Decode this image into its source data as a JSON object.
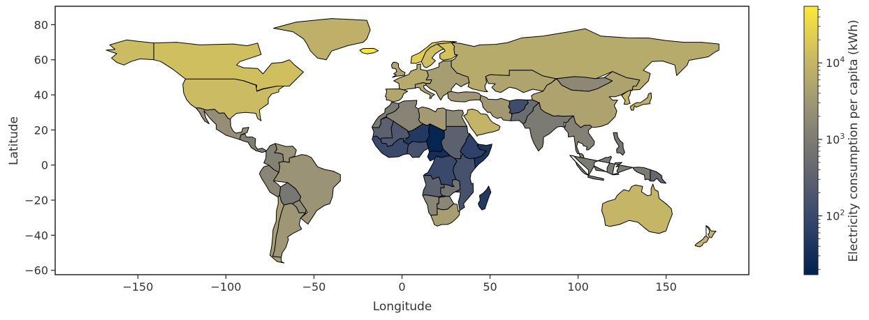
{
  "chart_data": {
    "type": "choropleth",
    "xlabel": "Longitude",
    "ylabel": "Latitude",
    "xlim": [
      -197,
      197
    ],
    "ylim": [
      -62.5,
      90.5
    ],
    "x_ticks": [
      -150,
      -100,
      -50,
      0,
      50,
      100,
      150
    ],
    "x_tick_labels": [
      "−150",
      "−100",
      "−50",
      "0",
      "50",
      "100",
      "150"
    ],
    "y_ticks": [
      80,
      60,
      40,
      20,
      0,
      -20,
      -40,
      -60
    ],
    "y_tick_labels": [
      "80",
      "60",
      "40",
      "20",
      "0",
      "−20",
      "−40",
      "−60"
    ],
    "colorbar": {
      "label": "Electricity consumption per capita (kWh)",
      "scale": "log",
      "range": [
        17,
        55000
      ],
      "major_ticks": [
        100,
        1000,
        10000
      ],
      "tick_labels": [
        {
          "base": "10",
          "exp": "2"
        },
        {
          "base": "10",
          "exp": "3"
        },
        {
          "base": "10",
          "exp": "4"
        }
      ],
      "colormap": [
        "#00224e",
        "#35456c",
        "#666970",
        "#948e77",
        "#c8b866",
        "#fee838"
      ]
    },
    "regions": [
      {
        "name": "Canada",
        "value": 14000
      },
      {
        "name": "United States",
        "value": 12000
      },
      {
        "name": "Alaska",
        "value": 12000
      },
      {
        "name": "Greenland",
        "value": 8000
      },
      {
        "name": "Iceland",
        "value": 50000
      },
      {
        "name": "Mexico",
        "value": 2200
      },
      {
        "name": "Central America",
        "value": 1100
      },
      {
        "name": "Colombia",
        "value": 1200
      },
      {
        "name": "Venezuela",
        "value": 2500
      },
      {
        "name": "Peru",
        "value": 1500
      },
      {
        "name": "Brazil",
        "value": 2600
      },
      {
        "name": "Bolivia",
        "value": 800
      },
      {
        "name": "Paraguay",
        "value": 1800
      },
      {
        "name": "Chile",
        "value": 4000
      },
      {
        "name": "Argentina",
        "value": 3000
      },
      {
        "name": "Norway",
        "value": 23000
      },
      {
        "name": "Sweden",
        "value": 13000
      },
      {
        "name": "Finland",
        "value": 15000
      },
      {
        "name": "United Kingdom",
        "value": 5000
      },
      {
        "name": "Western Europe",
        "value": 6500
      },
      {
        "name": "Spain",
        "value": 5500
      },
      {
        "name": "Italy",
        "value": 5000
      },
      {
        "name": "Eastern Europe",
        "value": 3800
      },
      {
        "name": "Turkey",
        "value": 3000
      },
      {
        "name": "Russia",
        "value": 6500
      },
      {
        "name": "Kazakhstan",
        "value": 5000
      },
      {
        "name": "Mongolia",
        "value": 1700
      },
      {
        "name": "China",
        "value": 4900
      },
      {
        "name": "Iran",
        "value": 3200
      },
      {
        "name": "Afghanistan",
        "value": 120
      },
      {
        "name": "Pakistan",
        "value": 500
      },
      {
        "name": "India",
        "value": 900
      },
      {
        "name": "Southeast Asia",
        "value": 1200
      },
      {
        "name": "Japan",
        "value": 8000
      },
      {
        "name": "Korea",
        "value": 10000
      },
      {
        "name": "Philippines",
        "value": 800
      },
      {
        "name": "Indonesia",
        "value": 900
      },
      {
        "name": "Papua New Guinea",
        "value": 400
      },
      {
        "name": "Australia",
        "value": 10000
      },
      {
        "name": "New Zealand",
        "value": 9000
      },
      {
        "name": "Morocco",
        "value": 900
      },
      {
        "name": "Algeria",
        "value": 1400
      },
      {
        "name": "Libya",
        "value": 3500
      },
      {
        "name": "Egypt",
        "value": 1700
      },
      {
        "name": "Saudi Arabia",
        "value": 9500
      },
      {
        "name": "Mauritania",
        "value": 300
      },
      {
        "name": "Mali",
        "value": 200
      },
      {
        "name": "Niger",
        "value": 50
      },
      {
        "name": "Chad",
        "value": 20
      },
      {
        "name": "Sudan",
        "value": 300
      },
      {
        "name": "West Africa",
        "value": 100
      },
      {
        "name": "Nigeria",
        "value": 150
      },
      {
        "name": "Ethiopia",
        "value": 70
      },
      {
        "name": "Somalia",
        "value": 40
      },
      {
        "name": "Central African Republic",
        "value": 30
      },
      {
        "name": "DR Congo",
        "value": 100
      },
      {
        "name": "Angola",
        "value": 300
      },
      {
        "name": "East Africa",
        "value": 150
      },
      {
        "name": "Zambia",
        "value": 700
      },
      {
        "name": "Namibia",
        "value": 1500
      },
      {
        "name": "Botswana",
        "value": 1600
      },
      {
        "name": "South Africa",
        "value": 4000
      },
      {
        "name": "Madagascar",
        "value": 50
      }
    ]
  }
}
